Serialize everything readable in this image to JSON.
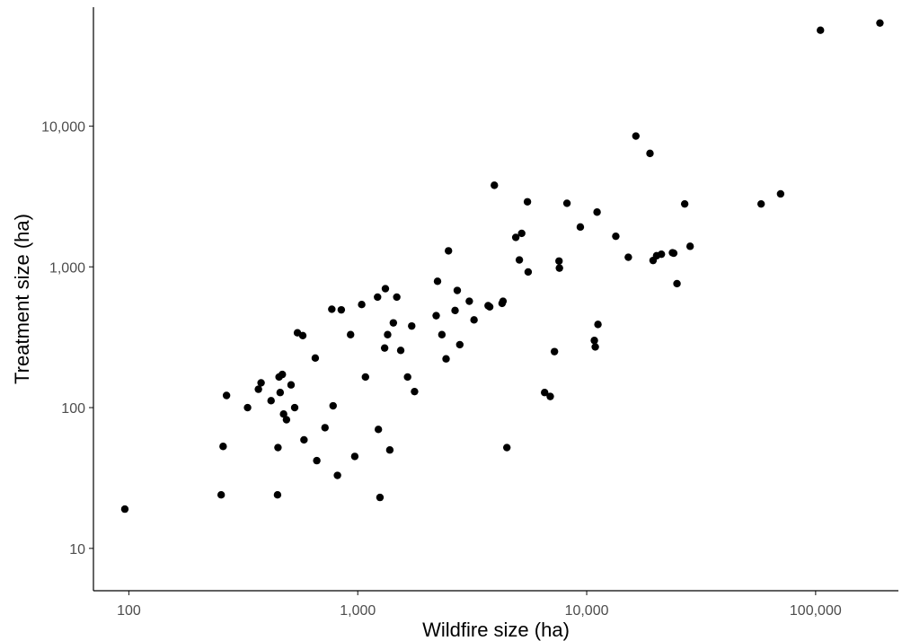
{
  "chart_data": {
    "type": "scatter",
    "title": "",
    "xlabel": "Wildfire size (ha)",
    "ylabel": "Treatment size (ha)",
    "x_scale": "log10",
    "y_scale": "log10",
    "xlim": [
      70,
      230000
    ],
    "ylim": [
      5,
      70000
    ],
    "x_ticks": [
      100,
      1000,
      10000,
      100000
    ],
    "x_tick_labels": [
      "100",
      "1,000",
      "10,000",
      "100,000"
    ],
    "y_ticks": [
      10,
      100,
      1000,
      10000
    ],
    "y_tick_labels": [
      "10",
      "100",
      "1,000",
      "10,000"
    ],
    "grid": false,
    "legend": "none",
    "color": "#000000",
    "points": [
      [
        96,
        19
      ],
      [
        253,
        24
      ],
      [
        258,
        53
      ],
      [
        267,
        122
      ],
      [
        330,
        100
      ],
      [
        368,
        135
      ],
      [
        378,
        150
      ],
      [
        418,
        112
      ],
      [
        446,
        24
      ],
      [
        448,
        52
      ],
      [
        453,
        165
      ],
      [
        458,
        128
      ],
      [
        468,
        172
      ],
      [
        474,
        90
      ],
      [
        488,
        82
      ],
      [
        511,
        145
      ],
      [
        530,
        100
      ],
      [
        545,
        340
      ],
      [
        575,
        325
      ],
      [
        582,
        59
      ],
      [
        652,
        225
      ],
      [
        662,
        42
      ],
      [
        719,
        72
      ],
      [
        770,
        500
      ],
      [
        780,
        103
      ],
      [
        815,
        33
      ],
      [
        847,
        495
      ],
      [
        930,
        330
      ],
      [
        970,
        45
      ],
      [
        1040,
        540
      ],
      [
        1080,
        165
      ],
      [
        1220,
        610
      ],
      [
        1230,
        70
      ],
      [
        1250,
        23
      ],
      [
        1310,
        265
      ],
      [
        1320,
        700
      ],
      [
        1350,
        330
      ],
      [
        1380,
        50
      ],
      [
        1430,
        400
      ],
      [
        1480,
        610
      ],
      [
        1540,
        255
      ],
      [
        1650,
        165
      ],
      [
        1720,
        380
      ],
      [
        1770,
        130
      ],
      [
        2200,
        450
      ],
      [
        2230,
        790
      ],
      [
        2330,
        330
      ],
      [
        2430,
        222
      ],
      [
        2490,
        1300
      ],
      [
        2660,
        490
      ],
      [
        2720,
        680
      ],
      [
        2790,
        280
      ],
      [
        3070,
        570
      ],
      [
        3220,
        420
      ],
      [
        3710,
        530
      ],
      [
        3770,
        520
      ],
      [
        3950,
        3800
      ],
      [
        4270,
        550
      ],
      [
        4310,
        570
      ],
      [
        4480,
        52
      ],
      [
        4900,
        1620
      ],
      [
        5080,
        1120
      ],
      [
        5200,
        1730
      ],
      [
        5510,
        2900
      ],
      [
        5550,
        920
      ],
      [
        6550,
        128
      ],
      [
        6930,
        120
      ],
      [
        7230,
        250
      ],
      [
        7570,
        1100
      ],
      [
        7600,
        980
      ],
      [
        8200,
        2830
      ],
      [
        9380,
        1920
      ],
      [
        10800,
        300
      ],
      [
        10900,
        270
      ],
      [
        11100,
        2450
      ],
      [
        11200,
        390
      ],
      [
        13400,
        1650
      ],
      [
        15200,
        1170
      ],
      [
        16400,
        8500
      ],
      [
        18900,
        6400
      ],
      [
        19500,
        1110
      ],
      [
        20200,
        1200
      ],
      [
        21200,
        1230
      ],
      [
        23700,
        1260
      ],
      [
        24000,
        1250
      ],
      [
        24800,
        760
      ],
      [
        26800,
        2800
      ],
      [
        28300,
        1400
      ],
      [
        57800,
        2800
      ],
      [
        70300,
        3300
      ],
      [
        105000,
        48000
      ],
      [
        191000,
        54000
      ]
    ]
  }
}
